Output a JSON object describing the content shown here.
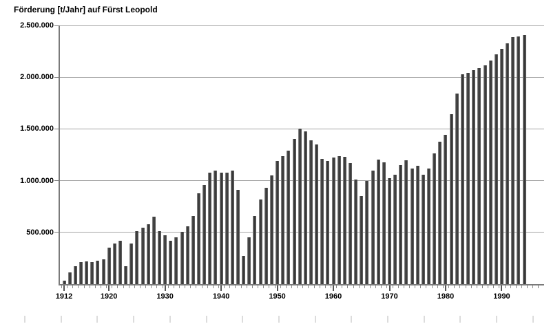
{
  "chart_data": {
    "type": "bar",
    "title": "Förderung [t/Jahr] auf Fürst Leopold",
    "xlabel": "",
    "ylabel": "Förderung [t/Jahr]",
    "ylim": [
      0,
      2500000
    ],
    "grid": "horizontal",
    "legend": "none",
    "yticks": [
      {
        "value": 500000,
        "label": "500.000"
      },
      {
        "value": 1000000,
        "label": "1.000.000"
      },
      {
        "value": 1500000,
        "label": "1.500.000"
      },
      {
        "value": 2000000,
        "label": "2.000.000"
      },
      {
        "value": 2500000,
        "label": "2.500.000"
      }
    ],
    "xticks": [
      1912,
      1920,
      1930,
      1940,
      1950,
      1960,
      1970,
      1980,
      1990
    ],
    "years": [
      1912,
      1913,
      1914,
      1915,
      1916,
      1917,
      1918,
      1919,
      1920,
      1921,
      1922,
      1923,
      1924,
      1925,
      1926,
      1927,
      1928,
      1929,
      1930,
      1931,
      1932,
      1933,
      1934,
      1935,
      1936,
      1937,
      1938,
      1939,
      1940,
      1941,
      1942,
      1943,
      1944,
      1945,
      1946,
      1947,
      1948,
      1949,
      1950,
      1951,
      1952,
      1953,
      1954,
      1955,
      1956,
      1957,
      1958,
      1959,
      1960,
      1961,
      1962,
      1963,
      1964,
      1965,
      1966,
      1967,
      1968,
      1969,
      1970,
      1971,
      1972,
      1973,
      1974,
      1975,
      1976,
      1977,
      1978,
      1979,
      1980,
      1981,
      1982,
      1983,
      1984,
      1985,
      1986,
      1987,
      1988,
      1989,
      1990,
      1991,
      1992,
      1993,
      1994
    ],
    "values": [
      30000,
      115000,
      170000,
      215000,
      220000,
      210000,
      225000,
      240000,
      350000,
      395000,
      420000,
      170000,
      390000,
      510000,
      545000,
      580000,
      650000,
      515000,
      470000,
      420000,
      450000,
      505000,
      560000,
      660000,
      880000,
      955000,
      1075000,
      1095000,
      1080000,
      1080000,
      1095000,
      910000,
      275000,
      455000,
      655000,
      815000,
      930000,
      1050000,
      1190000,
      1240000,
      1290000,
      1400000,
      1500000,
      1475000,
      1390000,
      1350000,
      1210000,
      1190000,
      1225000,
      1235000,
      1230000,
      1170000,
      1010000,
      850000,
      1000000,
      1100000,
      1205000,
      1175000,
      1025000,
      1060000,
      1150000,
      1195000,
      1120000,
      1145000,
      1055000,
      1120000,
      1265000,
      1375000,
      1440000,
      1640000,
      1840000,
      2030000,
      2040000,
      2065000,
      2085000,
      2115000,
      2160000,
      2220000,
      2275000,
      2330000,
      2390000,
      2395000,
      2405000
    ],
    "colors": {
      "bar": "#3a3a3a",
      "grid": "#a3a3a3",
      "axis": "#7a7a7a",
      "text": "#000000",
      "ruler_tick": "#dcdcdc",
      "background": "#ffffff"
    }
  }
}
